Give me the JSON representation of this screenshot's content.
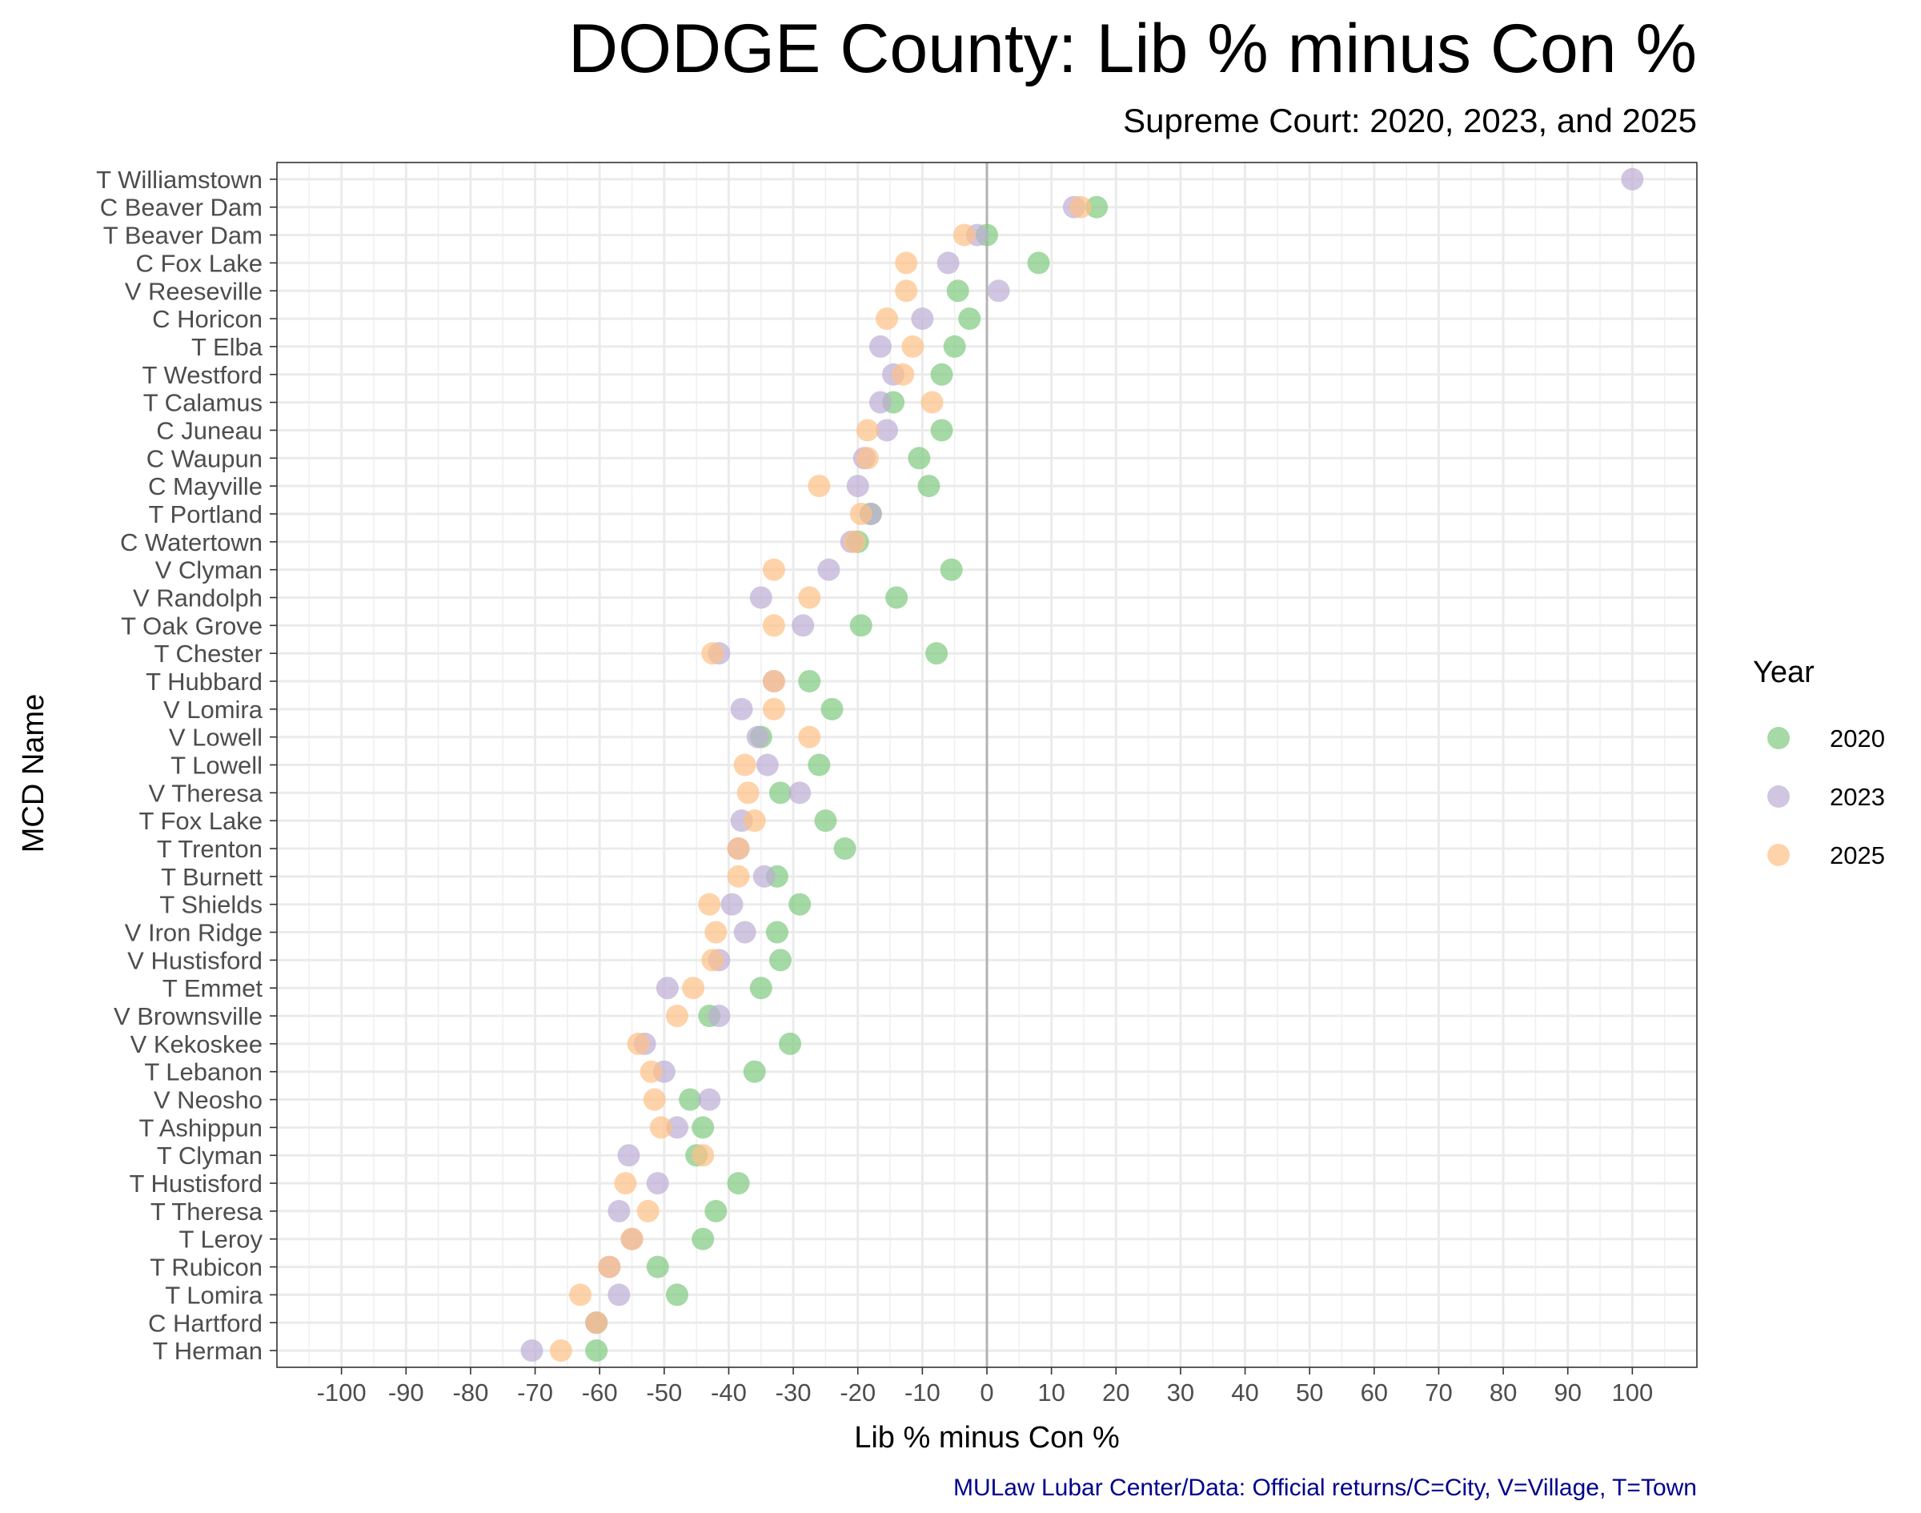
{
  "chart_data": {
    "type": "scatter",
    "title": "DODGE County: Lib % minus Con %",
    "subtitle": "Supreme Court: 2020, 2023, and 2025",
    "xlabel": "Lib % minus Con %",
    "ylabel": "MCD Name",
    "caption": "MULaw Lubar Center/Data: Official returns/C=City, V=Village, T=Town",
    "xlim": [
      -110,
      110
    ],
    "x_ticks": [
      "-100",
      "-90",
      "-80",
      "-70",
      "-60",
      "-50",
      "-40",
      "-30",
      "-20",
      "-10",
      "0",
      "10",
      "20",
      "30",
      "40",
      "50",
      "60",
      "70",
      "80",
      "90",
      "100"
    ],
    "grid": true,
    "reference_line_x": 0,
    "legend": {
      "title": "Year",
      "placement": "right"
    },
    "categories": [
      "T Williamstown",
      "C Beaver Dam",
      "T Beaver Dam",
      "C Fox Lake",
      "V Reeseville",
      "C Horicon",
      "T Elba",
      "T Westford",
      "T Calamus",
      "C Juneau",
      "C Waupun",
      "C Mayville",
      "T Portland",
      "C Watertown",
      "V Clyman",
      "V Randolph",
      "T Oak Grove",
      "T Chester",
      "T Hubbard",
      "V Lomira",
      "V Lowell",
      "T Lowell",
      "V Theresa",
      "T Fox Lake",
      "T Trenton",
      "T Burnett",
      "T Shields",
      "V Iron Ridge",
      "V Hustisford",
      "T Emmet",
      "V Brownsville",
      "V Kekoskee",
      "T Lebanon",
      "V Neosho",
      "T Ashippun",
      "T Clyman",
      "T Hustisford",
      "T Theresa",
      "T Leroy",
      "T Rubicon",
      "T Lomira",
      "C Hartford",
      "T Herman"
    ],
    "series": [
      {
        "name": "2020",
        "color": "#7fc97f",
        "values": [
          null,
          17,
          0,
          8,
          -4.5,
          -2.7,
          -5,
          -7,
          -14.5,
          -7,
          -10.5,
          -9,
          -18,
          -20,
          -5.5,
          -14,
          -19.5,
          -7.8,
          -27.5,
          -24,
          -35,
          -26,
          -32,
          -25,
          -22,
          -32.5,
          -29,
          -32.5,
          -32,
          -35,
          -43,
          -30.5,
          -36,
          -46,
          -44,
          -45,
          -38.5,
          -42,
          -44,
          -51,
          -48,
          -60.5,
          -60.5
        ]
      },
      {
        "name": "2023",
        "color": "#beaed4",
        "values": [
          100,
          13.5,
          -1.5,
          -6,
          1.8,
          -10,
          -16.5,
          -14.5,
          -16.5,
          -15.5,
          -19,
          -20,
          -18,
          -21,
          -24.5,
          -35,
          -28.5,
          -41.5,
          -33,
          -38,
          -35.5,
          -34,
          -29,
          -38,
          -38.5,
          -34.5,
          -39.5,
          -37.5,
          -41.5,
          -49.5,
          -41.5,
          -53,
          -50,
          -43,
          -48,
          -55.5,
          -51,
          -57,
          -55,
          -58.5,
          -57,
          -60.5,
          -70.5
        ]
      },
      {
        "name": "2025",
        "color": "#fdc086",
        "values": [
          null,
          14.5,
          -3.5,
          -12.5,
          -12.5,
          -15.5,
          -11.5,
          -13,
          -8.5,
          -18.5,
          -18.5,
          -26,
          -19.5,
          -20.5,
          -33,
          -27.5,
          -33,
          -42.5,
          -33,
          -33,
          -27.5,
          -37.5,
          -37,
          -36,
          -38.5,
          -38.5,
          -43,
          -42,
          -42.5,
          -45.5,
          -48,
          -54,
          -52,
          -51.5,
          -50.5,
          -44,
          -56,
          -52.5,
          -55,
          -58.5,
          -63,
          -60.5,
          -66
        ]
      }
    ]
  }
}
